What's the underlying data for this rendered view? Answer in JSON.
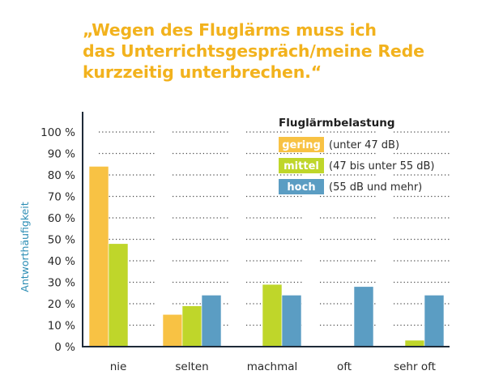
{
  "title_lines": [
    "„Wegen des Fluglärms muss ich",
    "das Unterrichtsgespräch/meine Rede",
    "kurzzeitig unterbrechen.“"
  ],
  "colors": {
    "title": "#f2b21d",
    "gering": "#f8c244",
    "mittel": "#bfd62a",
    "hoch": "#5b9dc3",
    "axis": "#1e2a38",
    "ylabel": "#2b8db4"
  },
  "chart_data": {
    "type": "bar",
    "title": "„Wegen des Fluglärms muss ich das Unterrichtsgespräch/meine Rede kurzzeitig unterbrechen.“",
    "ylabel": "Antworthäufigkeit",
    "xlabel": "",
    "ylim": [
      0,
      100
    ],
    "yticks": [
      "0 %",
      "10 %",
      "20 %",
      "30 %",
      "40 %",
      "50 %",
      "60 %",
      "70 %",
      "80 %",
      "90 %",
      "100 %"
    ],
    "categories": [
      "nie",
      "selten",
      "machmal",
      "oft",
      "sehr oft"
    ],
    "grid": "dotted horizontal at 0-100 % steps of 10 %",
    "legend": {
      "title": "Fluglärmbelastung",
      "placement": "top-right",
      "items": [
        {
          "label": "gering",
          "description": "(unter 47 dB)"
        },
        {
          "label": "mittel",
          "description": "(47 bis unter 55 dB)"
        },
        {
          "label": "hoch",
          "description": "(55 dB und mehr)"
        }
      ]
    },
    "series": [
      {
        "name": "gering",
        "values": [
          84,
          15,
          0,
          0,
          0
        ]
      },
      {
        "name": "mittel",
        "values": [
          48,
          19,
          29,
          0,
          3
        ]
      },
      {
        "name": "hoch",
        "values": [
          0,
          24,
          24,
          28,
          24
        ]
      }
    ]
  }
}
